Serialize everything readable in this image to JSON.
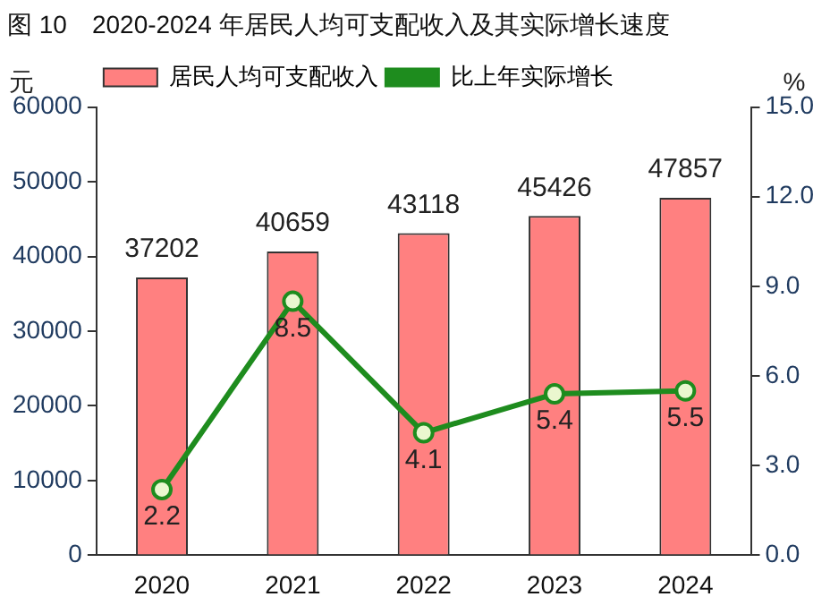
{
  "chart_data": {
    "type": "bar",
    "title": "图 10　2020-2024 年居民人均可支配收入及其实际增长速度",
    "ylabel": "元",
    "y2label": "%",
    "categories": [
      "2020",
      "2021",
      "2022",
      "2023",
      "2024"
    ],
    "series": [
      {
        "name": "居民人均可支配收入",
        "color": "#ff8080",
        "values": [
          37202,
          40659,
          43118,
          45426,
          47857
        ]
      },
      {
        "name": "比上年实际增长",
        "type": "line",
        "axis": "y2",
        "color": "#1e8c1e",
        "marker": "circle",
        "values": [
          2.2,
          8.5,
          4.1,
          5.4,
          5.5
        ]
      }
    ],
    "ylim": [
      0,
      60000
    ],
    "yticks": [
      0,
      10000,
      20000,
      30000,
      40000,
      50000,
      60000
    ],
    "y2lim": [
      0,
      15
    ],
    "y2ticks": [
      {
        "value": 0,
        "label": "0.0"
      },
      {
        "value": 3,
        "label": "3.0"
      },
      {
        "value": 6,
        "label": "6.0"
      },
      {
        "value": 9,
        "label": "9.0"
      },
      {
        "value": 12,
        "label": "12.0"
      },
      {
        "value": 15,
        "label": "15.0"
      }
    ],
    "data_labels": true,
    "legend": "top left",
    "grid": false
  }
}
